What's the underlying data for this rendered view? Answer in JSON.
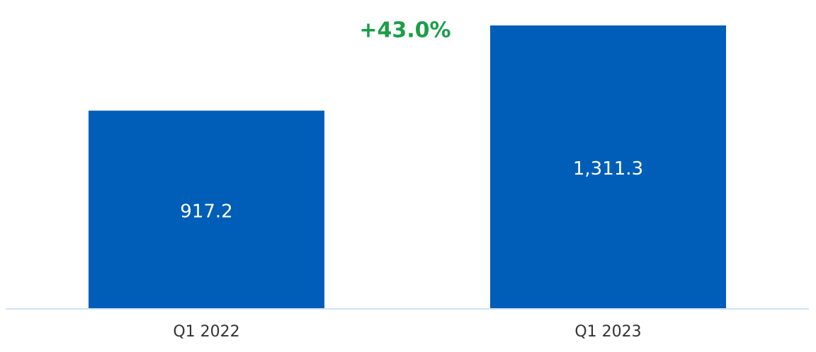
{
  "chart_data": {
    "type": "bar",
    "categories": [
      "Q1 2022",
      "Q1 2023"
    ],
    "values": [
      917.2,
      1311.3
    ],
    "value_labels": [
      "917.2",
      "1,311.3"
    ],
    "color": "#005eb8",
    "annotations": [
      "+43.0%"
    ]
  }
}
